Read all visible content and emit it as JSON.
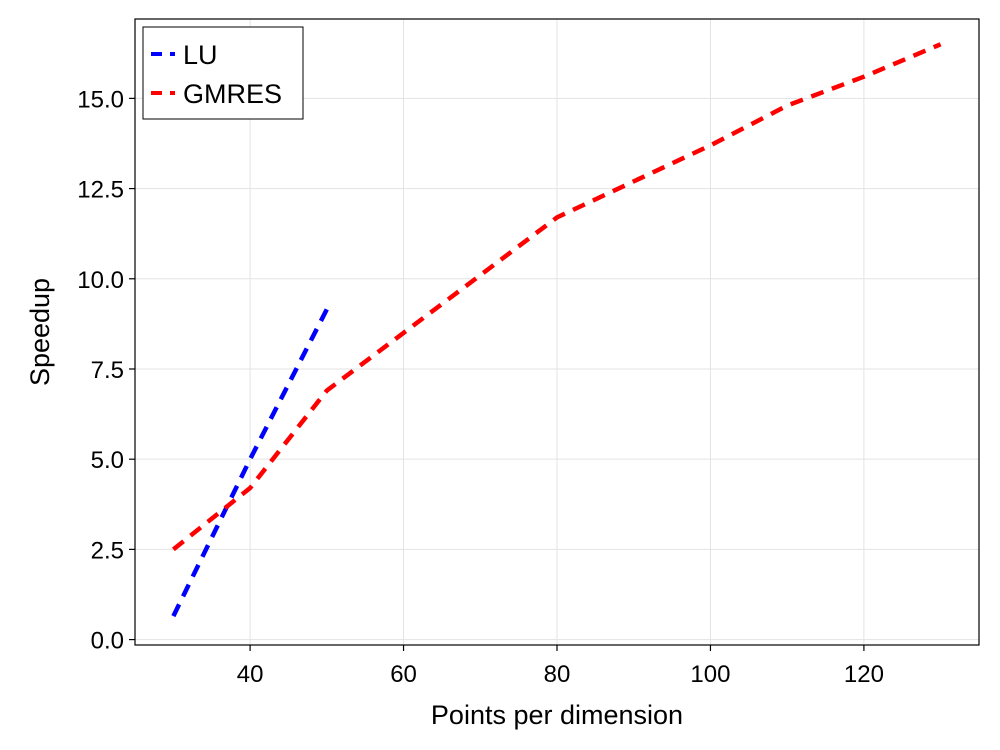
{
  "chart_data": {
    "type": "line",
    "xlabel": "Points per dimension",
    "ylabel": "Speedup",
    "xlim": [
      25,
      135
    ],
    "ylim": [
      -0.15,
      17.2
    ],
    "xticks": [
      40,
      60,
      80,
      100,
      120
    ],
    "xtick_labels": [
      "40",
      "60",
      "80",
      "100",
      "120"
    ],
    "yticks": [
      0.0,
      2.5,
      5.0,
      7.5,
      10.0,
      12.5,
      15.0
    ],
    "ytick_labels": [
      "0.0",
      "2.5",
      "5.0",
      "7.5",
      "10.0",
      "12.5",
      "15.0"
    ],
    "grid": true,
    "legend_position": "top-left",
    "series": [
      {
        "name": "LU",
        "color": "#0000ff",
        "line_style": "dashed",
        "x": [
          30,
          40,
          50
        ],
        "y": [
          0.65,
          5.0,
          9.15
        ]
      },
      {
        "name": "GMRES",
        "color": "#ff0000",
        "line_style": "dashed",
        "x": [
          30,
          40,
          50,
          60,
          70,
          80,
          90,
          100,
          110,
          120,
          130
        ],
        "y": [
          2.5,
          4.2,
          6.9,
          8.5,
          10.1,
          11.7,
          12.7,
          13.7,
          14.8,
          15.6,
          16.5
        ]
      }
    ]
  }
}
